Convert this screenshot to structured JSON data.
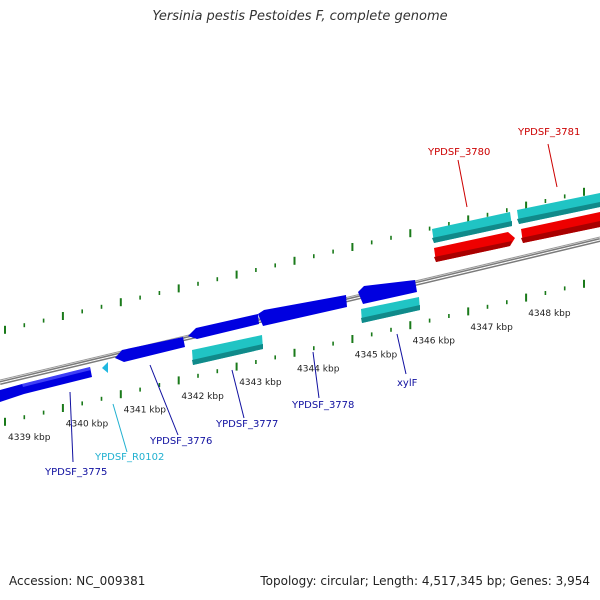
{
  "title": "Yersinia pestis Pestoides F, complete genome",
  "accession": "Accession: NC_009381",
  "summary": "Topology: circular; Length: 4,517,345 bp; Genes: 3,954",
  "colors": {
    "backbone": "#808080",
    "tick": "#1a7a1a",
    "gene_blue": "#0000e0",
    "gene_cyan": "#20c4c4",
    "gene_red": "#ee0000",
    "label_blue": "#1010a0",
    "label_cyan": "#20b0d0",
    "label_red": "#cc0000"
  },
  "ticks": [
    {
      "label": "4339 kbp",
      "kbp": 4339
    },
    {
      "label": "4340 kbp",
      "kbp": 4340
    },
    {
      "label": "4341 kbp",
      "kbp": 4341
    },
    {
      "label": "4342 kbp",
      "kbp": 4342
    },
    {
      "label": "4343 kbp",
      "kbp": 4343
    },
    {
      "label": "4344 kbp",
      "kbp": 4344
    },
    {
      "label": "4345 kbp",
      "kbp": 4345
    },
    {
      "label": "4346 kbp",
      "kbp": 4346
    },
    {
      "label": "4347 kbp",
      "kbp": 4347
    },
    {
      "label": "4348 kbp",
      "kbp": 4348
    }
  ],
  "genes": [
    {
      "name": "YPDSF_3775",
      "color": "blue",
      "strand": "reverse",
      "ring": 0
    },
    {
      "name": "YPDSF_R0102",
      "color": "cyan",
      "strand": "reverse",
      "ring": 0
    },
    {
      "name": "YPDSF_3776",
      "color": "blue",
      "strand": "reverse",
      "ring": 0
    },
    {
      "name": "YPDSF_3777",
      "color": "cyan",
      "strand": "reverse",
      "ring": 1
    },
    {
      "name": "YPDSF_3778",
      "color": "blue",
      "strand": "reverse",
      "ring": 0
    },
    {
      "name": "xylF",
      "color": "cyan",
      "strand": "reverse",
      "ring": 1
    },
    {
      "name": "YPDSF_3780",
      "color": "cyan",
      "strand": "forward",
      "ring": 0
    },
    {
      "name": "YPDSF_3781",
      "color": "cyan",
      "strand": "forward",
      "ring": 0
    }
  ]
}
